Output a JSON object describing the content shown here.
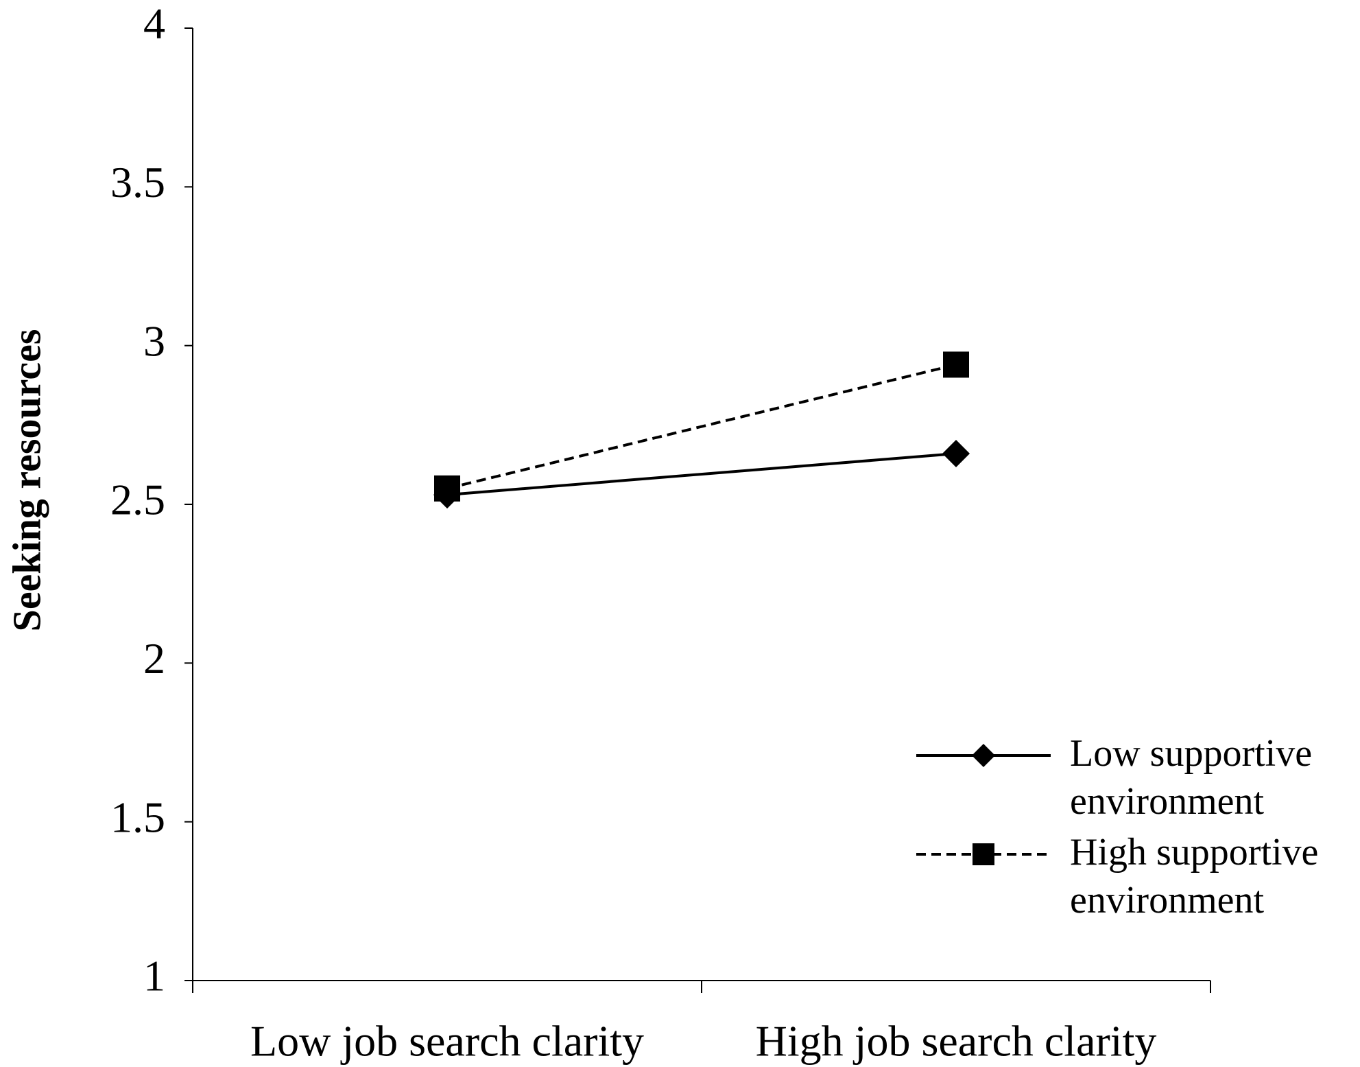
{
  "chart_data": {
    "type": "line",
    "y_label": "Seeking resources",
    "categories": [
      "Low job search clarity",
      "High job search clarity"
    ],
    "series": [
      {
        "name": "Low supportive environment",
        "color": "#000000",
        "line_style": "solid",
        "marker": "diamond",
        "values": [
          2.53,
          2.66
        ]
      },
      {
        "name": "High supportive environment",
        "color": "#000000",
        "line_style": "dashed",
        "marker": "square",
        "values": [
          2.55,
          2.94
        ]
      }
    ],
    "ylim": [
      1,
      4
    ],
    "yticks": [
      1,
      1.5,
      2,
      2.5,
      3,
      3.5,
      4
    ],
    "grid": false,
    "legend": "right"
  }
}
